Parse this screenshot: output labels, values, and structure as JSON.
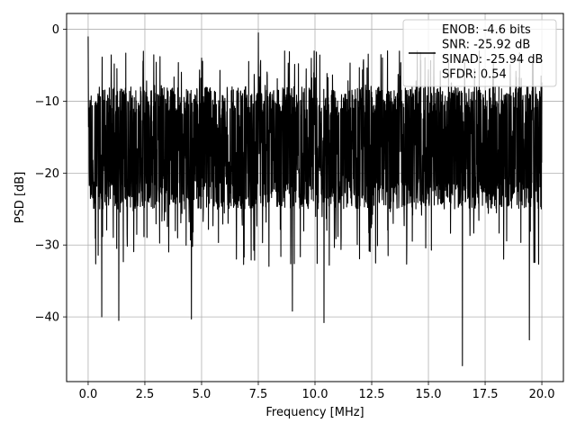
{
  "chart_data": {
    "type": "line",
    "xlabel": "Frequency [MHz]",
    "ylabel": "PSD [dB]",
    "xlim": [
      -0.95,
      20.95
    ],
    "ylim": [
      -49,
      2.2
    ],
    "xticks": [
      0.0,
      2.5,
      5.0,
      7.5,
      10.0,
      12.5,
      15.0,
      17.5,
      20.0
    ],
    "xtick_labels": [
      "0.0",
      "2.5",
      "5.0",
      "7.5",
      "10.0",
      "12.5",
      "15.0",
      "17.5",
      "20.0"
    ],
    "yticks": [
      0,
      -10,
      -20,
      -30,
      -40
    ],
    "ytick_labels": [
      "0",
      "−10",
      "−20",
      "−30",
      "−40"
    ],
    "grid": true,
    "legend_position": "top-right",
    "line_color": "#000000",
    "series": [
      {
        "name": "ENOB: -4.6 bits\nSNR: -25.92 dB\nSINAD: -25.94 dB\nSFDR: 0.54",
        "x_range": [
          0.0,
          20.0
        ],
        "typical_range": [
          -25,
          -8
        ],
        "peaks": [
          {
            "x": 0.0,
            "y": -1.0
          },
          {
            "x": 7.5,
            "y": -0.5
          },
          {
            "x": 5.0,
            "y": -4.0
          },
          {
            "x": 13.2,
            "y": -3.0
          }
        ],
        "dips": [
          {
            "x": 0.6,
            "y": -40
          },
          {
            "x": 1.35,
            "y": -40.5
          },
          {
            "x": 4.55,
            "y": -40.3
          },
          {
            "x": 9.0,
            "y": -39.2
          },
          {
            "x": 10.4,
            "y": -40.8
          },
          {
            "x": 16.5,
            "y": -46.8
          },
          {
            "x": 19.45,
            "y": -43.2
          }
        ]
      }
    ]
  }
}
